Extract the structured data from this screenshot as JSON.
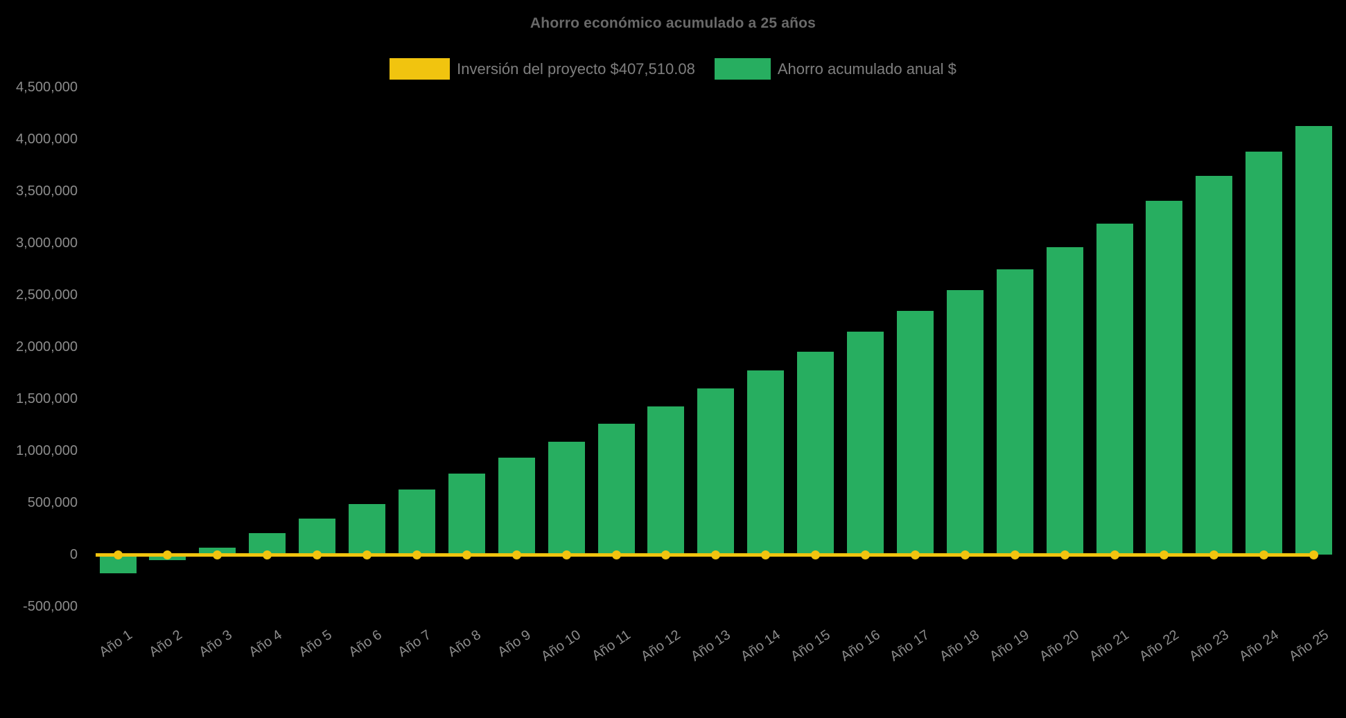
{
  "title": "Ahorro económico acumulado a 25 años",
  "background_color": "#000000",
  "text_colors": {
    "title": "#696969",
    "legend": "#7f7f7f",
    "ticks": "#8c8c8c"
  },
  "legend": {
    "position": "top",
    "items": [
      {
        "id": "investment",
        "label": "Inversión del proyecto $407,510.08",
        "color": "#F1C40F"
      },
      {
        "id": "savings",
        "label": "Ahorro acumulado anual $",
        "color": "#27AE60"
      }
    ]
  },
  "chart_data": {
    "type": "bar",
    "title": "Ahorro económico acumulado a 25 años",
    "background": "#000000",
    "grid": false,
    "legend_position": "top",
    "x_label_rotation_deg": -34,
    "categories": [
      "Año 1",
      "Año 2",
      "Año 3",
      "Año 4",
      "Año 5",
      "Año 6",
      "Año 7",
      "Año 8",
      "Año 9",
      "Año 10",
      "Año 11",
      "Año 12",
      "Año 13",
      "Año 14",
      "Año 15",
      "Año 16",
      "Año 17",
      "Año 18",
      "Año 19",
      "Año 20",
      "Año 21",
      "Año 22",
      "Año 23",
      "Año 24",
      "Año 25"
    ],
    "series": [
      {
        "name": "Ahorro acumulado anual $",
        "type": "bar",
        "color": "#27AE60",
        "values": [
          -180000,
          -55000,
          70000,
          205000,
          345000,
          485000,
          630000,
          780000,
          935000,
          1090000,
          1260000,
          1425000,
          1600000,
          1775000,
          1955000,
          2145000,
          2345000,
          2550000,
          2750000,
          2960000,
          3185000,
          3410000,
          3645000,
          3880000,
          4130000
        ]
      },
      {
        "name": "Inversión del proyecto $407,510.08",
        "type": "line",
        "color": "#F1C40F",
        "marker": "circle",
        "values": [
          0,
          0,
          0,
          0,
          0,
          0,
          0,
          0,
          0,
          0,
          0,
          0,
          0,
          0,
          0,
          0,
          0,
          0,
          0,
          0,
          0,
          0,
          0,
          0,
          0
        ]
      }
    ],
    "y_axis": {
      "min": -500000,
      "max": 4500000,
      "tick_step": 500000,
      "tick_labels": [
        "4,500,000",
        "4,000,000",
        "3,500,000",
        "3,000,000",
        "2,500,000",
        "2,000,000",
        "1,500,000",
        "1,000,000",
        "500,000",
        "0",
        "-500,000"
      ]
    }
  }
}
